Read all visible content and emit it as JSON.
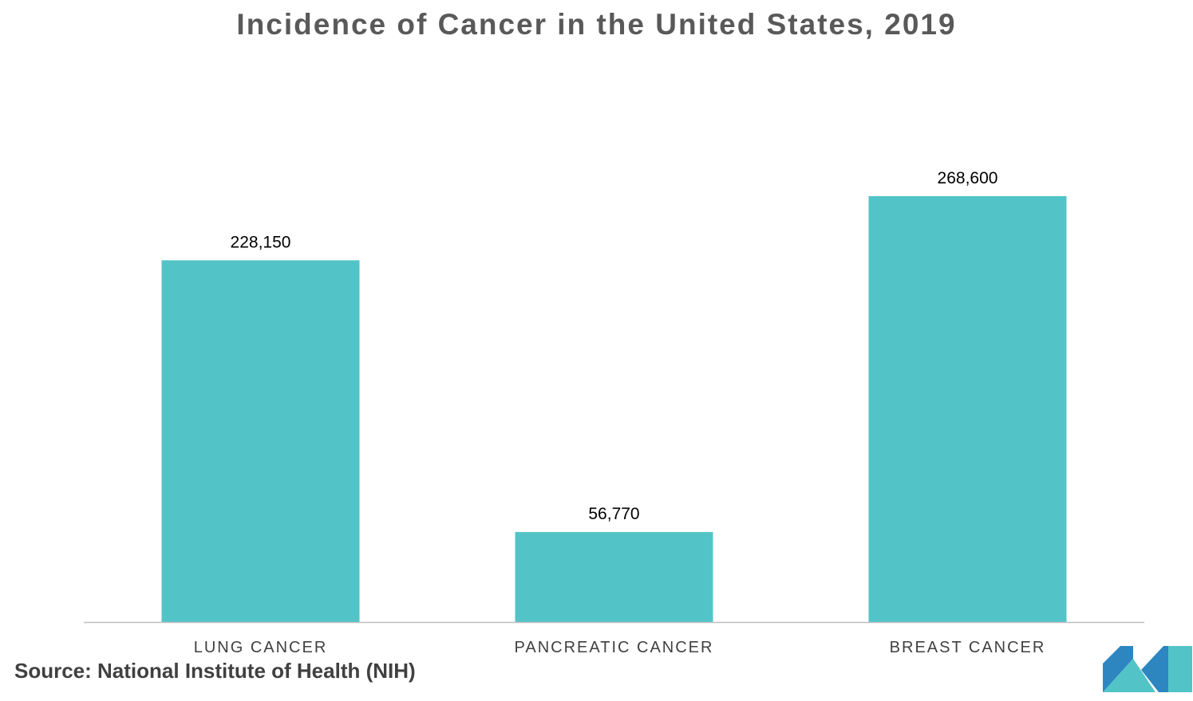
{
  "chart_data": {
    "type": "bar",
    "title": "Incidence of Cancer in the United States, 2019",
    "categories": [
      "LUNG CANCER",
      "PANCREATIC CANCER",
      "BREAST CANCER"
    ],
    "values": [
      228150,
      56770,
      268600
    ],
    "data_labels": [
      "228,150",
      "56,770",
      "268,600"
    ],
    "xlabel": "",
    "ylabel": "",
    "ylim": [
      0,
      340000
    ],
    "grid": false,
    "legend": "none",
    "colors": {
      "bar": "#52C4C8",
      "axis": "#BFBFBF",
      "tick_label": "#404040",
      "data_label": "#000000"
    }
  },
  "source": "Source: National Institute of Health (NIH)",
  "logo": {
    "icon": "company-logo-icon",
    "colors": [
      "#2E86C1",
      "#52C4C8"
    ]
  }
}
